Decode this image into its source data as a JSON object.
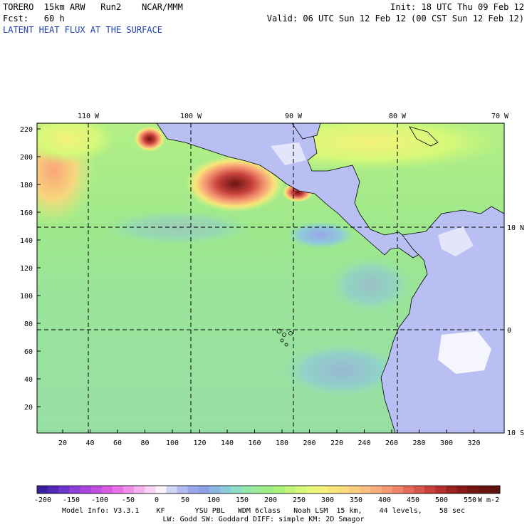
{
  "header": {
    "model_line": "TORERO  15km ARW   Run2    NCAR/MMM",
    "init_line": "Init: 18 UTC Thu 09 Feb 12",
    "fcst_line": "Fcst:   60 h",
    "valid_line": "Valid: 06 UTC Sun 12 Feb 12 (00 CST Sun 12 Feb 12)",
    "field_title": "LATENT HEAT FLUX AT THE SURFACE"
  },
  "map": {
    "top_longitude_labels": [
      "110 W",
      "100 W",
      "90 W",
      "80 W",
      "70 W"
    ],
    "right_latitude_labels": [
      "10 N",
      "0",
      "10 S"
    ],
    "left_grid_labels": [
      "220",
      "200",
      "180",
      "160",
      "140",
      "120",
      "100",
      "80",
      "60",
      "40",
      "20"
    ],
    "bottom_grid_labels": [
      "20",
      "40",
      "60",
      "80",
      "100",
      "120",
      "140",
      "160",
      "180",
      "200",
      "220",
      "240",
      "260",
      "280",
      "300",
      "320"
    ]
  },
  "colorbar": {
    "tick_labels": [
      "-200",
      "-150",
      "-100",
      "-50",
      "0",
      "50",
      "100",
      "150",
      "200",
      "250",
      "300",
      "350",
      "400",
      "450",
      "500",
      "550"
    ],
    "unit": "W m-2",
    "colors": [
      "#3a1f9e",
      "#5427b8",
      "#6e35cc",
      "#8e3fd8",
      "#a846dd",
      "#c24fe0",
      "#d95ae2",
      "#e96fe6",
      "#f08ee9",
      "#f5b0ee",
      "#f8d2f2",
      "#fdf2fb",
      "#d0d4f5",
      "#b3baf0",
      "#9aa6ea",
      "#8d9fe6",
      "#8bb5e0",
      "#8dcbd8",
      "#8fdcc6",
      "#94e6ad",
      "#99eb96",
      "#9fef84",
      "#acf27a",
      "#c0f579",
      "#d6f87a",
      "#e8f97a",
      "#f4f27a",
      "#f8e67a",
      "#fadb7e",
      "#fbcd80",
      "#fbbe80",
      "#f9ac7c",
      "#f59874",
      "#ef836a",
      "#e56c5c",
      "#d8564c",
      "#c8413c",
      "#b3302d",
      "#9a2220",
      "#861a16",
      "#731512",
      "#6a1410",
      "#60120e"
    ]
  },
  "footer": {
    "line1": "Model Info: V3.3.1    KF       YSU PBL   WDM 6class   Noah LSM  15 km,    44 levels,    58 sec",
    "line2": "LW: Godd SW: Goddard DIFF: simple KM: 2D Smagor"
  }
}
